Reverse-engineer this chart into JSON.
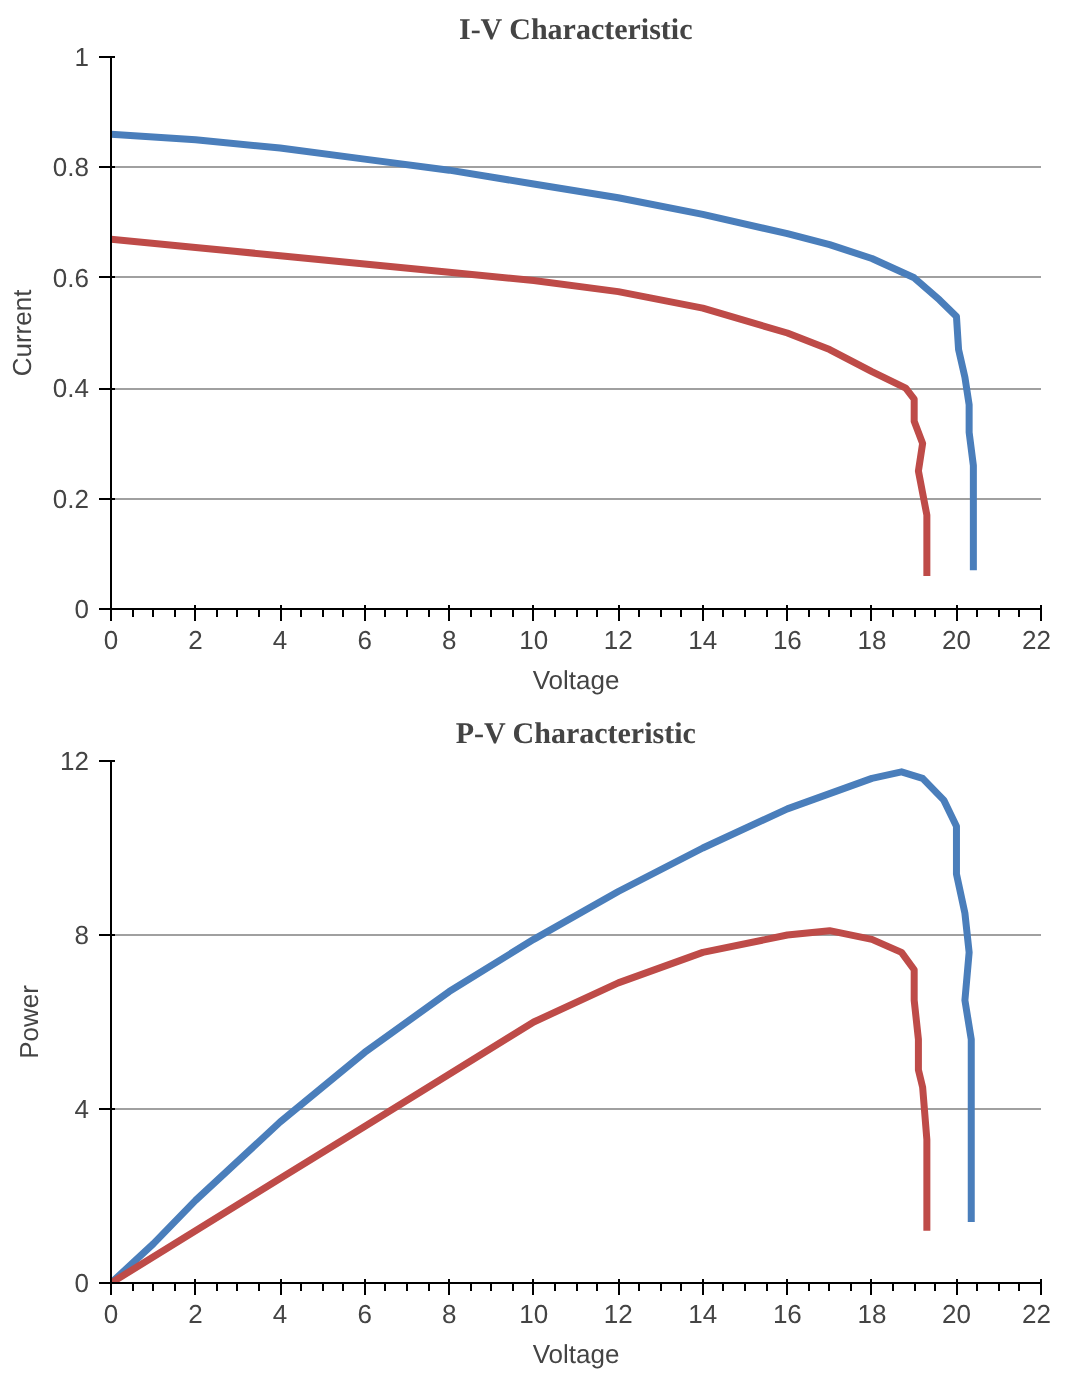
{
  "chart_data": [
    {
      "type": "line",
      "title": "I-V Characteristic",
      "xlabel": "Voltage",
      "ylabel": "Current",
      "xlim": [
        0,
        22
      ],
      "xticks": [
        0,
        2,
        4,
        6,
        8,
        10,
        12,
        14,
        16,
        18,
        20,
        22
      ],
      "ylim": [
        0,
        1
      ],
      "yticks": [
        0,
        0.2,
        0.4,
        0.6,
        0.8,
        1
      ],
      "grid": "y",
      "line_style": "solid",
      "series": [
        {
          "color": "#4a7ebb",
          "x": [
            0,
            2,
            4,
            6,
            8,
            10,
            12,
            14,
            16,
            17,
            18,
            19,
            19.6,
            20,
            20.05,
            20.2,
            20.3,
            20.3,
            20.4,
            20.4,
            20.4
          ],
          "values": [
            0.86,
            0.85,
            0.835,
            0.815,
            0.795,
            0.77,
            0.745,
            0.715,
            0.68,
            0.66,
            0.635,
            0.6,
            0.56,
            0.53,
            0.47,
            0.42,
            0.37,
            0.32,
            0.26,
            0.15,
            0.07
          ]
        },
        {
          "color": "#be4b48",
          "x": [
            0,
            2,
            4,
            6,
            8,
            10,
            12,
            14,
            16,
            17,
            18,
            18.8,
            19,
            19,
            19.2,
            19.1,
            19.2,
            19.3,
            19.3
          ],
          "values": [
            0.67,
            0.655,
            0.64,
            0.625,
            0.61,
            0.595,
            0.575,
            0.545,
            0.5,
            0.47,
            0.43,
            0.4,
            0.38,
            0.34,
            0.3,
            0.25,
            0.21,
            0.17,
            0.06
          ]
        }
      ]
    },
    {
      "type": "line",
      "title": "P-V Characteristic",
      "xlabel": "Voltage",
      "ylabel": "Power",
      "xlim": [
        0,
        22
      ],
      "xticks": [
        0,
        2,
        4,
        6,
        8,
        10,
        12,
        14,
        16,
        18,
        20,
        22
      ],
      "ylim": [
        0,
        12
      ],
      "yticks": [
        0,
        4,
        8,
        12
      ],
      "grid": "y",
      "line_style": "solid",
      "series": [
        {
          "color": "#4a7ebb",
          "x": [
            0,
            1,
            2,
            4,
            6,
            8,
            10,
            12,
            14,
            16,
            18,
            18.7,
            19.2,
            19.7,
            20,
            20,
            20.2,
            20.3,
            20.2,
            20.35,
            20.35,
            20.35
          ],
          "values": [
            0,
            0.9,
            1.9,
            3.7,
            5.3,
            6.7,
            7.9,
            9,
            10,
            10.9,
            11.6,
            11.75,
            11.6,
            11.1,
            10.5,
            9.4,
            8.5,
            7.6,
            6.5,
            5.6,
            3,
            1.4
          ]
        },
        {
          "color": "#be4b48",
          "x": [
            0,
            2,
            4,
            6,
            8,
            10,
            12,
            14,
            16,
            17,
            18,
            18.7,
            19,
            19,
            19.1,
            19.1,
            19.2,
            19.3,
            19.3
          ],
          "values": [
            0,
            1.2,
            2.4,
            3.6,
            4.8,
            6,
            6.9,
            7.6,
            8,
            8.1,
            7.9,
            7.6,
            7.2,
            6.5,
            5.6,
            4.9,
            4.5,
            3.3,
            1.2
          ]
        }
      ]
    }
  ]
}
